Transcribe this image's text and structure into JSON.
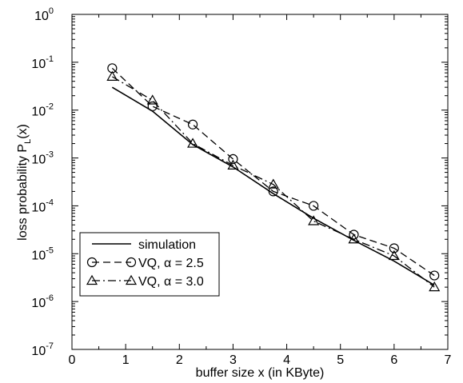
{
  "chart_data": {
    "type": "line",
    "xlabel": "buffer size x (in KByte)",
    "ylabel": "loss probability P",
    "ylabel_sub": "L",
    "ylabel_tail": "(x)",
    "xlim": [
      0,
      7
    ],
    "ylim_log10": [
      -7,
      0
    ],
    "yscale": "log",
    "x_ticks": [
      0,
      1,
      2,
      3,
      4,
      5,
      6,
      7
    ],
    "y_tick_exponents": [
      0,
      -1,
      -2,
      -3,
      -4,
      -5,
      -6,
      -7
    ],
    "y_tick_base": "10",
    "grid": false,
    "legend_position": "lower-left",
    "series": [
      {
        "name": "simulation",
        "style": "solid",
        "marker": "none",
        "x": [
          0.75,
          1.5,
          2.25,
          3.0,
          3.75,
          4.5,
          5.25,
          6.0,
          6.75
        ],
        "y": [
          0.03,
          0.0095,
          0.0019,
          0.00065,
          0.00018,
          5.5e-05,
          1.9e-05,
          7e-06,
          2.2e-06
        ]
      },
      {
        "name": "VQ, α = 2.5",
        "style": "dashed",
        "marker": "circle",
        "x": [
          0.75,
          1.5,
          2.25,
          3.0,
          3.75,
          4.5,
          5.25,
          6.0,
          6.75
        ],
        "y": [
          0.075,
          0.012,
          0.005,
          0.00095,
          0.0002,
          0.0001,
          2.5e-05,
          1.3e-05,
          3.5e-06
        ]
      },
      {
        "name": "VQ, α = 3.0",
        "style": "dashdot",
        "marker": "triangle",
        "x": [
          0.75,
          1.5,
          2.25,
          3.0,
          3.75,
          4.5,
          5.25,
          6.0,
          6.75
        ],
        "y": [
          0.05,
          0.016,
          0.002,
          0.0007,
          0.00028,
          4.8e-05,
          2e-05,
          9e-06,
          2e-06
        ]
      }
    ]
  }
}
